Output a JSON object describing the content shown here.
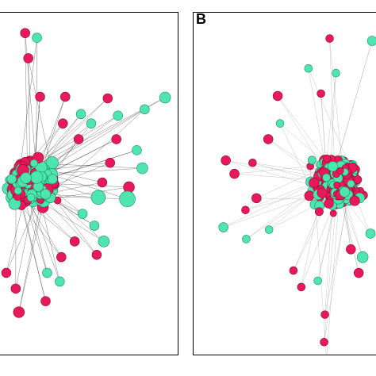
{
  "panels": [
    {
      "id": "A",
      "label": ""
    },
    {
      "id": "B",
      "label": "B"
    }
  ],
  "colors": {
    "node_pink": "#e8195a",
    "node_pink_stroke": "#8a0a2e",
    "node_green": "#4ee6b0",
    "node_green_stroke": "#1a8a62",
    "edge_dark": "#333333",
    "edge_light": "#9a9a9a",
    "panel_border": "#000000"
  }
}
